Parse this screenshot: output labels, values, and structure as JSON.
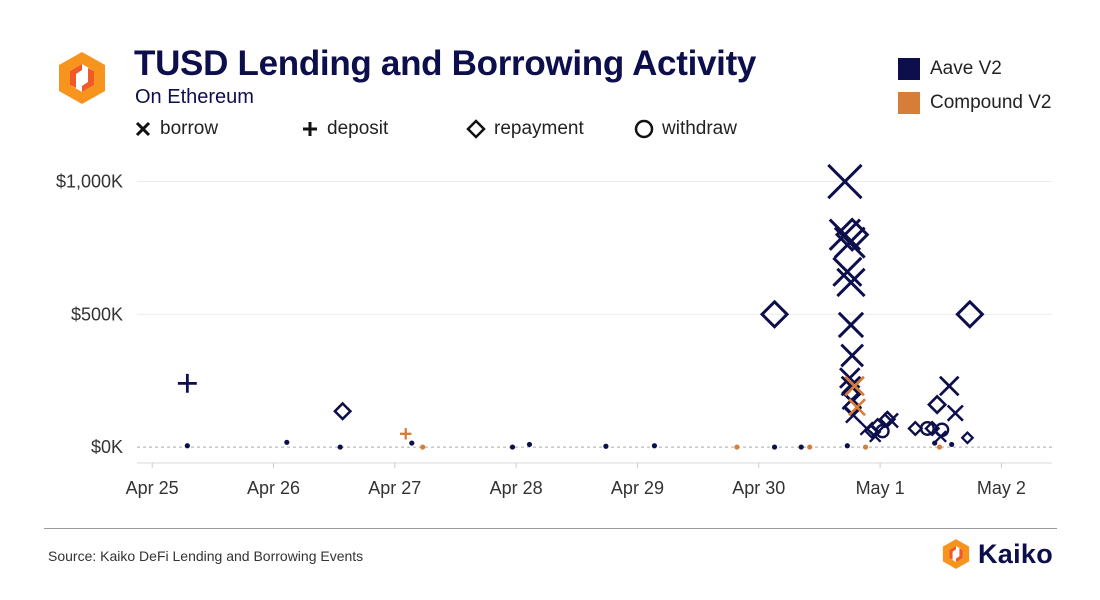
{
  "header": {
    "title": "TUSD Lending and Borrowing Activity",
    "subtitle": "On Ethereum"
  },
  "legend": {
    "shapes": [
      {
        "icon": "x-mark",
        "label": "borrow"
      },
      {
        "icon": "plus-mark",
        "label": "deposit"
      },
      {
        "icon": "diamond-mark",
        "label": "repayment"
      },
      {
        "icon": "circle-mark",
        "label": "withdraw"
      }
    ],
    "series": [
      {
        "label": "Aave V2",
        "color": "#0d0e4c"
      },
      {
        "label": "Compound V2",
        "color": "#d77d3a"
      }
    ]
  },
  "footer": {
    "source": "Source: Kaiko DeFi Lending and Borrowing Events",
    "brand": "Kaiko"
  },
  "colors": {
    "aave": "#0d0e4c",
    "compound": "#d77d3a",
    "logo_outer": "#f7941d",
    "logo_inner": "#f15a24"
  },
  "chart_data": {
    "type": "scatter",
    "title": "TUSD Lending and Borrowing Activity",
    "subtitle": "On Ethereum",
    "x_unit": "date",
    "x_ticks": [
      {
        "v": 0,
        "label": "Apr 25"
      },
      {
        "v": 1,
        "label": "Apr 26"
      },
      {
        "v": 2,
        "label": "Apr 27"
      },
      {
        "v": 3,
        "label": "Apr 28"
      },
      {
        "v": 4,
        "label": "Apr 29"
      },
      {
        "v": 5,
        "label": "Apr 30"
      },
      {
        "v": 6,
        "label": "May 1"
      },
      {
        "v": 7,
        "label": "May 2"
      }
    ],
    "x_range": [
      "2021-04-24T21:00",
      "2021-05-02T10:00"
    ],
    "y_ticks": [
      {
        "v": 0,
        "label": "$0K"
      },
      {
        "v": 500000,
        "label": "$500K"
      },
      {
        "v": 1000000,
        "label": "$1,000K"
      }
    ],
    "y_range": [
      -60000,
      1100000
    ],
    "ylabel": "",
    "xlabel": "",
    "gridlines": "horizontal",
    "zero_line": "dashed",
    "legend_position": "top-right",
    "series": [
      {
        "name": "Aave V2",
        "color": "#0d0e4c",
        "points": [
          {
            "x": 0.29,
            "y": 240000,
            "kind": "deposit"
          },
          {
            "x": 0.29,
            "y": 5000,
            "kind": "withdraw"
          },
          {
            "x": 1.11,
            "y": 18000,
            "kind": "withdraw"
          },
          {
            "x": 1.57,
            "y": 135000,
            "kind": "repayment"
          },
          {
            "x": 1.55,
            "y": 0,
            "kind": "repayment"
          },
          {
            "x": 2.14,
            "y": 15000,
            "kind": "withdraw"
          },
          {
            "x": 2.97,
            "y": 0,
            "kind": "repayment"
          },
          {
            "x": 3.11,
            "y": 10000,
            "kind": "withdraw"
          },
          {
            "x": 3.74,
            "y": 3000,
            "kind": "repayment"
          },
          {
            "x": 4.14,
            "y": 5000,
            "kind": "withdraw"
          },
          {
            "x": 5.13,
            "y": 500000,
            "kind": "repayment"
          },
          {
            "x": 5.13,
            "y": 0,
            "kind": "withdraw"
          },
          {
            "x": 5.35,
            "y": 0,
            "kind": "borrow"
          },
          {
            "x": 5.71,
            "y": 1000000,
            "kind": "borrow"
          },
          {
            "x": 5.71,
            "y": 800000,
            "kind": "borrow"
          },
          {
            "x": 5.75,
            "y": 770000,
            "kind": "borrow"
          },
          {
            "x": 5.77,
            "y": 800000,
            "kind": "repayment"
          },
          {
            "x": 5.73,
            "y": 660000,
            "kind": "borrow"
          },
          {
            "x": 5.76,
            "y": 620000,
            "kind": "borrow"
          },
          {
            "x": 5.76,
            "y": 460000,
            "kind": "borrow"
          },
          {
            "x": 5.77,
            "y": 345000,
            "kind": "borrow"
          },
          {
            "x": 5.75,
            "y": 260000,
            "kind": "borrow"
          },
          {
            "x": 5.76,
            "y": 230000,
            "kind": "borrow"
          },
          {
            "x": 5.77,
            "y": 205000,
            "kind": "repayment"
          },
          {
            "x": 5.76,
            "y": 175000,
            "kind": "borrow"
          },
          {
            "x": 5.77,
            "y": 150000,
            "kind": "repayment"
          },
          {
            "x": 5.78,
            "y": 120000,
            "kind": "borrow"
          },
          {
            "x": 5.73,
            "y": 5000,
            "kind": "borrow"
          },
          {
            "x": 5.89,
            "y": 70000,
            "kind": "borrow"
          },
          {
            "x": 5.93,
            "y": 60000,
            "kind": "repayment"
          },
          {
            "x": 5.96,
            "y": 40000,
            "kind": "borrow"
          },
          {
            "x": 5.98,
            "y": 80000,
            "kind": "repayment"
          },
          {
            "x": 6.02,
            "y": 60000,
            "kind": "withdraw"
          },
          {
            "x": 6.06,
            "y": 105000,
            "kind": "repayment"
          },
          {
            "x": 6.09,
            "y": 100000,
            "kind": "borrow"
          },
          {
            "x": 6.29,
            "y": 70000,
            "kind": "repayment"
          },
          {
            "x": 6.39,
            "y": 70000,
            "kind": "withdraw"
          },
          {
            "x": 6.43,
            "y": 70000,
            "kind": "repayment"
          },
          {
            "x": 6.47,
            "y": 160000,
            "kind": "repayment"
          },
          {
            "x": 6.51,
            "y": 65000,
            "kind": "withdraw"
          },
          {
            "x": 6.45,
            "y": 15000,
            "kind": "withdraw"
          },
          {
            "x": 6.5,
            "y": 40000,
            "kind": "borrow"
          },
          {
            "x": 6.57,
            "y": 230000,
            "kind": "borrow"
          },
          {
            "x": 6.59,
            "y": 10000,
            "kind": "deposit"
          },
          {
            "x": 6.62,
            "y": 128000,
            "kind": "borrow"
          },
          {
            "x": 6.72,
            "y": 35000,
            "kind": "repayment"
          },
          {
            "x": 6.74,
            "y": 500000,
            "kind": "repayment"
          }
        ]
      },
      {
        "name": "Compound V2",
        "color": "#d77d3a",
        "points": [
          {
            "x": 2.09,
            "y": 50000,
            "kind": "deposit"
          },
          {
            "x": 2.23,
            "y": 0,
            "kind": "withdraw"
          },
          {
            "x": 4.82,
            "y": 0,
            "kind": "withdraw"
          },
          {
            "x": 5.42,
            "y": 0,
            "kind": "withdraw"
          },
          {
            "x": 5.81,
            "y": 150000,
            "kind": "borrow"
          },
          {
            "x": 5.79,
            "y": 230000,
            "kind": "borrow"
          },
          {
            "x": 5.88,
            "y": 0,
            "kind": "repayment"
          },
          {
            "x": 6.49,
            "y": 0,
            "kind": "deposit"
          }
        ]
      }
    ]
  }
}
